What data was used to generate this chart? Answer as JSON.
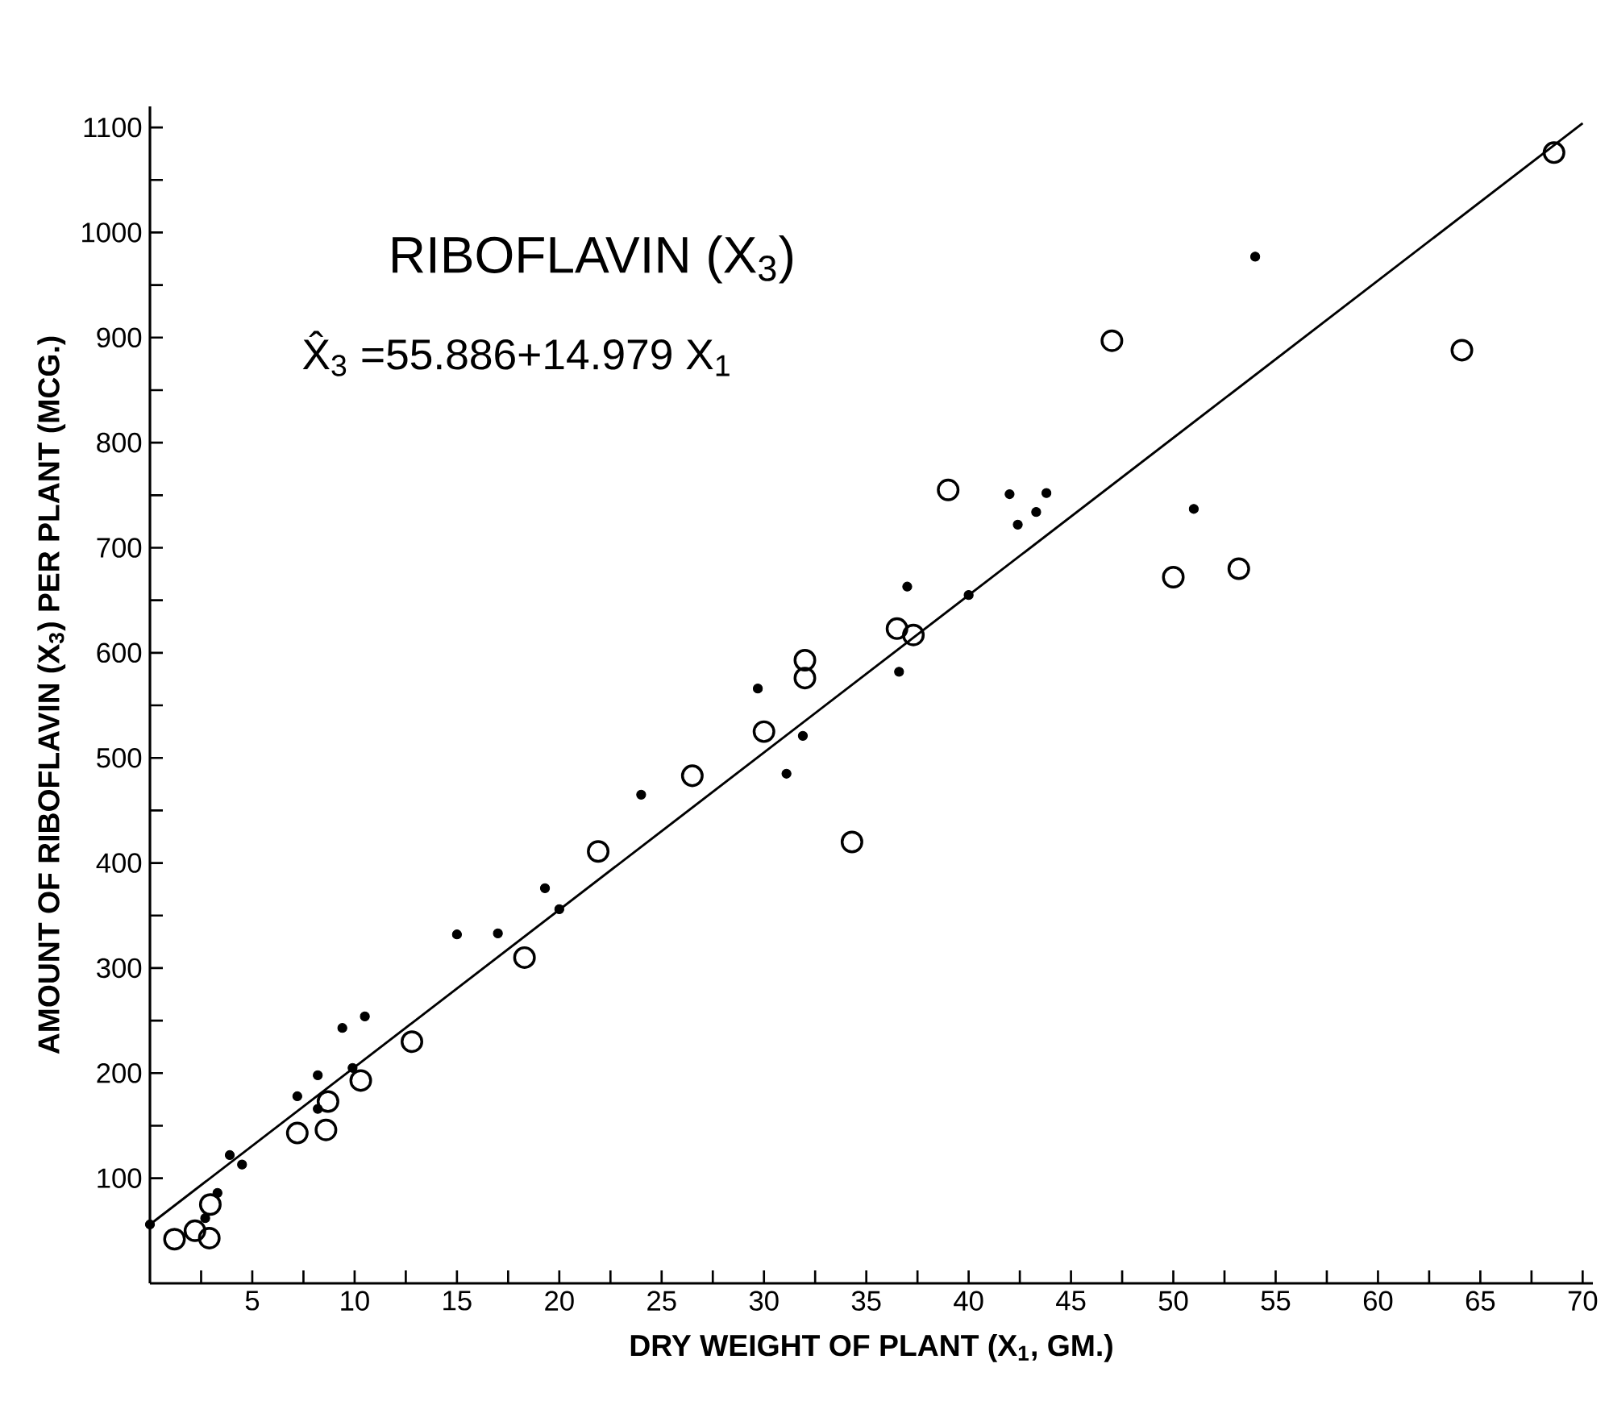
{
  "chart_data": {
    "type": "scatter",
    "title": "RIBOFLAVIN (X$_{3}$)",
    "annotations": [
      "X̂$_{3}$ =55.886+14.979 X$_{1}$"
    ],
    "xlabel": "DRY WEIGHT OF PLANT (X$_{1}$, GM.)",
    "ylabel": "AMOUNT OF RIBOFLAVIN (X$_{3}$) PER PLANT (MCG.)",
    "xlim": [
      0,
      70.5
    ],
    "ylim": [
      0,
      1120
    ],
    "xticks": [
      {
        "value": 2.5,
        "label": null
      },
      5,
      {
        "value": 7.5,
        "label": null
      },
      10,
      {
        "value": 12.5,
        "label": null
      },
      15,
      {
        "value": 17.5,
        "label": null
      },
      20,
      {
        "value": 22.5,
        "label": null
      },
      25,
      {
        "value": 27.5,
        "label": null
      },
      30,
      {
        "value": 32.5,
        "label": null
      },
      35,
      {
        "value": 37.5,
        "label": null
      },
      40,
      {
        "value": 42.5,
        "label": null
      },
      45,
      {
        "value": 47.5,
        "label": null
      },
      50,
      {
        "value": 52.5,
        "label": null
      },
      55,
      {
        "value": 57.5,
        "label": null
      },
      60,
      {
        "value": 62.5,
        "label": null
      },
      65,
      {
        "value": 67.5,
        "label": null
      },
      70
    ],
    "yticks": [
      100,
      {
        "value": 150,
        "label": null
      },
      200,
      {
        "value": 250,
        "label": null
      },
      300,
      {
        "value": 350,
        "label": null
      },
      400,
      {
        "value": 450,
        "label": null
      },
      500,
      {
        "value": 550,
        "label": null
      },
      600,
      {
        "value": 650,
        "label": null
      },
      700,
      {
        "value": 750,
        "label": null
      },
      800,
      {
        "value": 850,
        "label": null
      },
      900,
      {
        "value": 950,
        "label": null
      },
      1000,
      {
        "value": 1050,
        "label": null
      },
      1100
    ],
    "grid": false,
    "series": [
      {
        "color": "#000000",
        "marker": "circle",
        "x": [
          1.2,
          2.2,
          2.9,
          2.95,
          7.2,
          8.6,
          8.7,
          10.3,
          12.8,
          18.3,
          21.9,
          26.5,
          30.0,
          32.0,
          32.0,
          34.3,
          36.5,
          37.3,
          39.0,
          47.0,
          50.0,
          53.2,
          64.1,
          68.6
        ],
        "values": [
          42,
          50,
          43,
          75,
          143,
          146,
          173,
          193,
          230,
          310,
          411,
          483,
          525,
          593,
          576,
          420,
          623,
          617,
          755,
          897,
          672,
          680,
          888,
          1076
        ]
      },
      {
        "color": "#000000",
        "marker": "circle",
        "x": [
          0,
          2.7,
          3.3,
          3.9,
          4.5,
          7.2,
          8.2,
          8.2,
          9.4,
          9.9,
          10.5,
          15.0,
          17.0,
          19.3,
          20.0,
          24.0,
          29.7,
          31.1,
          31.9,
          36.6,
          37.0,
          40.0,
          42.0,
          42.4,
          43.3,
          43.8,
          51.0,
          54.0
        ],
        "values": [
          56,
          62,
          86,
          122,
          113,
          178,
          198,
          166,
          243,
          205,
          254,
          332,
          333,
          376,
          356,
          465,
          566,
          485,
          521,
          582,
          663,
          655,
          751,
          722,
          734,
          752,
          737,
          977
        ]
      },
      {
        "type": "line",
        "color": "#000000",
        "line_style": "solid",
        "x": [
          0,
          70
        ],
        "values": [
          56,
          1104
        ]
      }
    ]
  }
}
